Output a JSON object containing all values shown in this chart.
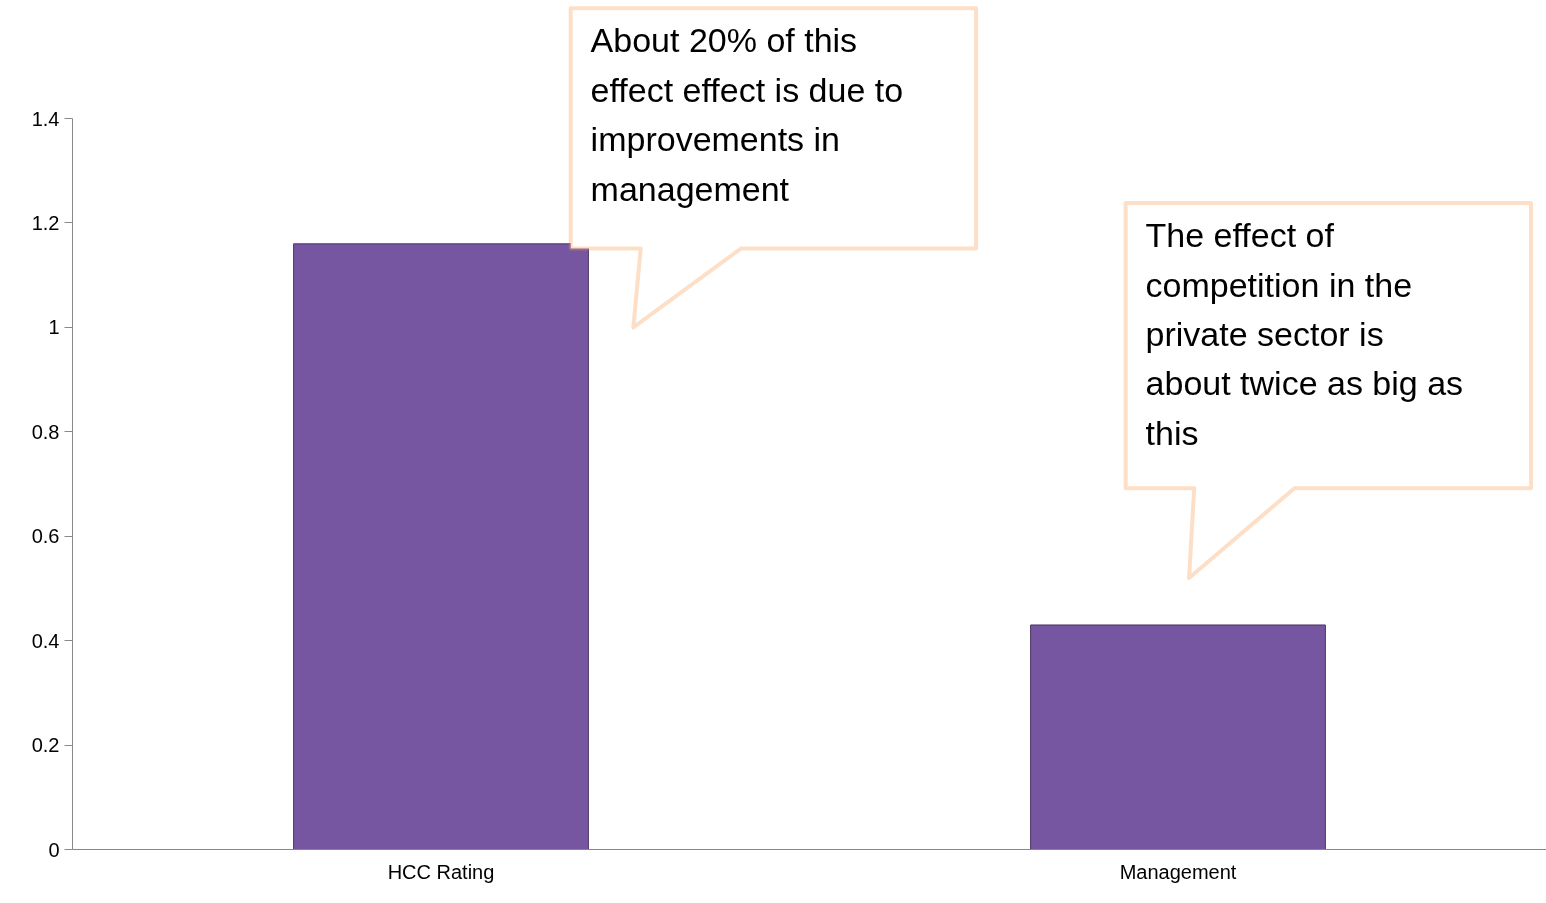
{
  "chart_data": {
    "type": "bar",
    "categories": [
      "HCC Rating",
      "Management"
    ],
    "values": [
      1.16,
      0.43
    ],
    "color": "#7656a0",
    "ylim": [
      0,
      1.4
    ],
    "yticks": [
      0,
      0.2,
      0.4,
      0.6,
      0.8,
      1,
      1.2,
      1.4
    ],
    "grid": false,
    "annotations": [
      "About 20% of this\neffect effect is due to\nimprovements in\nmanagement",
      "The effect of\ncompetition in the\nprivate sector is\nabout twice as big as\nthis"
    ]
  }
}
